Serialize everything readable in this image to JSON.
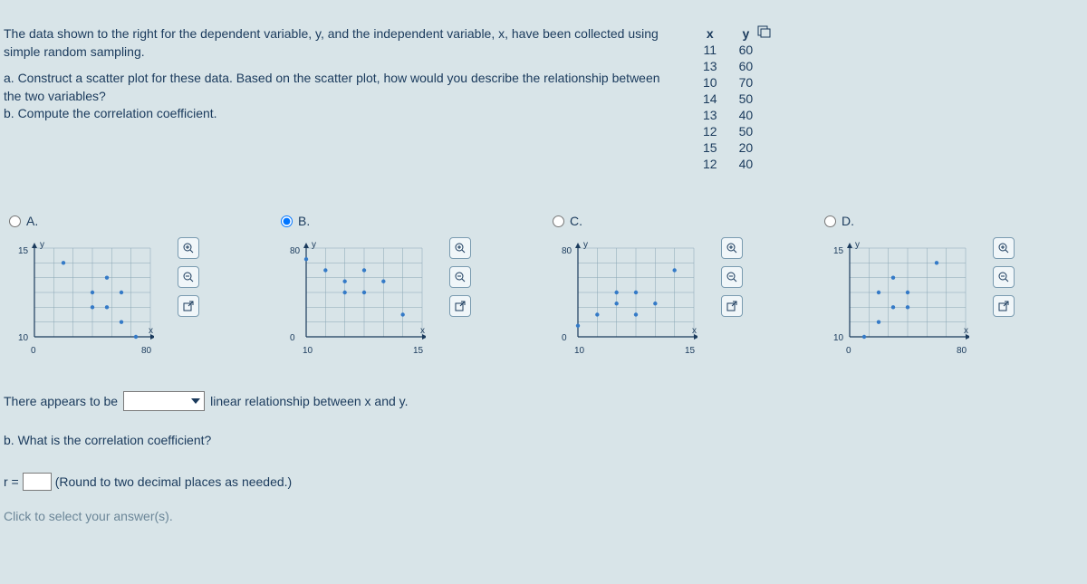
{
  "problem": {
    "line1": "The data shown to the right for the dependent variable, y, and the independent variable, x, have been collected using simple random sampling.",
    "a1": "a. Construct a scatter plot for these data. Based on the scatter plot, how would you describe the relationship between the two variables?",
    "b1": "b. Compute the correlation coefficient."
  },
  "table": {
    "head_x": "x",
    "head_y": "y",
    "rows": [
      {
        "x": "11",
        "y": "60"
      },
      {
        "x": "13",
        "y": "60"
      },
      {
        "x": "10",
        "y": "70"
      },
      {
        "x": "14",
        "y": "50"
      },
      {
        "x": "13",
        "y": "40"
      },
      {
        "x": "12",
        "y": "50"
      },
      {
        "x": "15",
        "y": "20"
      },
      {
        "x": "12",
        "y": "40"
      }
    ]
  },
  "options": [
    {
      "label": "A.",
      "selected": false,
      "xlabel": "x",
      "ylabel": "y",
      "xmin": "0",
      "xmax": "80",
      "ymin": "10",
      "ymax": "15",
      "points": [
        [
          60,
          11
        ],
        [
          60,
          13
        ],
        [
          70,
          10
        ],
        [
          50,
          14
        ],
        [
          40,
          13
        ],
        [
          50,
          12
        ],
        [
          20,
          15
        ],
        [
          40,
          12
        ]
      ],
      "domain": [
        0,
        80,
        10,
        16
      ]
    },
    {
      "label": "B.",
      "selected": true,
      "xlabel": "x",
      "ylabel": "y",
      "xmin": "10",
      "xmax": "15",
      "ymin": "0",
      "ymax": "80",
      "points": [
        [
          11,
          60
        ],
        [
          13,
          60
        ],
        [
          10,
          70
        ],
        [
          14,
          50
        ],
        [
          13,
          40
        ],
        [
          12,
          50
        ],
        [
          15,
          20
        ],
        [
          12,
          40
        ]
      ],
      "domain": [
        10,
        16,
        0,
        80
      ]
    },
    {
      "label": "C.",
      "selected": false,
      "xlabel": "x",
      "ylabel": "y",
      "xmin": "10",
      "xmax": "15",
      "ymin": "0",
      "ymax": "80",
      "points": [
        [
          11,
          20
        ],
        [
          13,
          20
        ],
        [
          10,
          10
        ],
        [
          14,
          30
        ],
        [
          13,
          40
        ],
        [
          12,
          30
        ],
        [
          15,
          60
        ],
        [
          12,
          40
        ]
      ],
      "domain": [
        10,
        16,
        0,
        80
      ]
    },
    {
      "label": "D.",
      "selected": false,
      "xlabel": "x",
      "ylabel": "y",
      "xmin": "0",
      "xmax": "80",
      "ymin": "10",
      "ymax": "15",
      "points": [
        [
          20,
          11
        ],
        [
          20,
          13
        ],
        [
          10,
          10
        ],
        [
          30,
          14
        ],
        [
          40,
          13
        ],
        [
          30,
          12
        ],
        [
          60,
          15
        ],
        [
          40,
          12
        ]
      ],
      "domain": [
        0,
        80,
        10,
        16
      ]
    }
  ],
  "dropdown": {
    "before": "There appears to be",
    "after": "linear relationship between x and y."
  },
  "partb": "b. What is the correlation coefficient?",
  "r_label": "r =",
  "r_hint": "(Round to two decimal places as needed.)",
  "footer": "Click to select your answer(s).",
  "colors": {
    "bg": "#d8e4e8",
    "text": "#1a3a5c",
    "point": "#347ac7",
    "grid": "#8aa6b5"
  },
  "tool_labels": {
    "zoom_in": "+",
    "zoom_out": "−",
    "popout": "↗"
  }
}
